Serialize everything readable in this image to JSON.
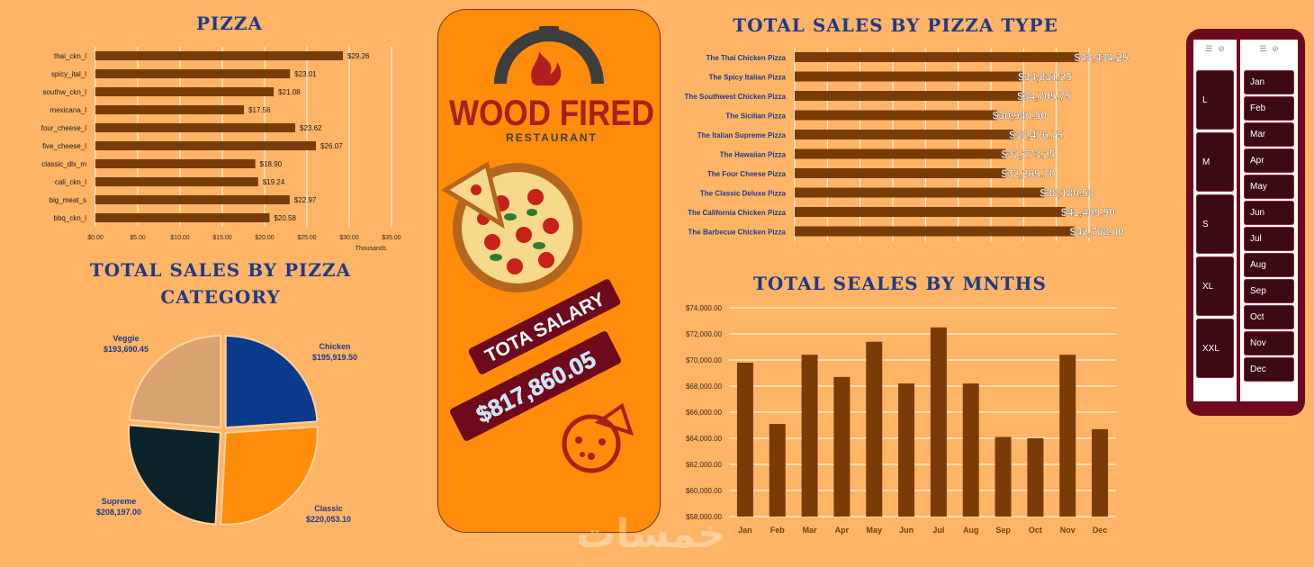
{
  "titles": {
    "pizza": "PIZZA",
    "by_type": "TOTAL SALES BY PIZZA TYPE",
    "by_category_line1": "TOTAL SALES BY PIZZA",
    "by_category_line2": "CATEGORY",
    "by_month": "TOTAL SEALES BY MNTHS"
  },
  "poster": {
    "brand": "WOOD FIRED",
    "sub": "RESTAURANT",
    "salary_label": "TOTA SALARY",
    "salary_value": "$817,860.05"
  },
  "colors": {
    "background": "#ffb466",
    "bar": "#7a3c06",
    "title": "#1f3a8a",
    "poster": "#ff8c0a",
    "slicer": "#6e0a1c",
    "slicer_button": "#3b0a12"
  },
  "slicers": {
    "size": {
      "items": [
        "L",
        "M",
        "S",
        "XL",
        "XXL"
      ]
    },
    "month": {
      "items": [
        "Jan",
        "Feb",
        "Mar",
        "Apr",
        "May",
        "Jun",
        "Jul",
        "Aug",
        "Sep",
        "Oct",
        "Nov",
        "Dec"
      ]
    }
  },
  "watermark": "خمسات",
  "chart_data": [
    {
      "type": "bar",
      "orientation": "horizontal",
      "title": "PIZZA",
      "categories": [
        "thai_ckn_l",
        "spicy_ital_l",
        "southw_ckn_l",
        "mexicana_l",
        "four_cheese_l",
        "five_cheese_l",
        "classic_dlx_m",
        "cali_ckn_l",
        "big_meat_s",
        "bbq_ckn_l"
      ],
      "values": [
        29.26,
        23.01,
        21.08,
        17.56,
        23.62,
        26.07,
        18.9,
        19.24,
        22.97,
        20.58
      ],
      "value_labels": [
        "$29.26",
        "$23.01",
        "$21.08",
        "$17.56",
        "$23.62",
        "$26.07",
        "$18.90",
        "$19.24",
        "$22.97",
        "$20.58"
      ],
      "xticks": [
        "$0.00",
        "$5.00",
        "$10.00",
        "$15.00",
        "$20.00",
        "$25.00",
        "$30.00",
        "$35.00"
      ],
      "xlim": [
        0,
        35
      ],
      "xunit": "Thousands",
      "grid": true
    },
    {
      "type": "bar",
      "orientation": "horizontal",
      "title": "TOTAL SALES BY PIZZA TYPE",
      "categories": [
        "The Thai Chicken Pizza",
        "The Spicy Italian Pizza",
        "The Southwest Chicken Pizza",
        "The Sicilian Pizza",
        "The Italian Supreme Pizza",
        "The Hawaiian Pizza",
        "The Four Cheese Pizza",
        "The Classic Deluxe Pizza",
        "The California Chicken Pizza",
        "The Barbecue Chicken Pizza"
      ],
      "values": [
        43434.25,
        34831.25,
        34705.75,
        30940.5,
        33476.75,
        32273.25,
        32265.7,
        38180.5,
        41409.5,
        42768.0
      ],
      "value_labels": [
        "$43,434.25",
        "$34,831.25",
        "$34,705.75",
        "$30,940.50",
        "$33,476.75",
        "$32,273.25",
        "$32,265.70",
        "$38,180.50",
        "$41,409.50",
        "$42,768.00"
      ],
      "xlim": [
        0,
        45000
      ],
      "grid": true
    },
    {
      "type": "pie",
      "title": "TOTAL SALES BY PIZZA CATEGORY",
      "labels": [
        "Chicken",
        "Classic",
        "Supreme",
        "Veggie"
      ],
      "values": [
        195919.5,
        220053.1,
        208197.0,
        193690.45
      ],
      "value_labels": [
        "$195,919.50",
        "$220,053.10",
        "$208,197.00",
        "$193,690.45"
      ],
      "colors": [
        "#0a3a8c",
        "#ff8c0a",
        "#0c2329",
        "#d9a36f"
      ]
    },
    {
      "type": "bar",
      "title": "TOTAL SEALES BY MNTHS",
      "categories": [
        "Jan",
        "Feb",
        "Mar",
        "Apr",
        "May",
        "Jun",
        "Jul",
        "Aug",
        "Sep",
        "Oct",
        "Nov",
        "Dec"
      ],
      "values": [
        69800,
        65100,
        70400,
        68700,
        71400,
        68200,
        72500,
        68200,
        64100,
        64000,
        70400,
        64700
      ],
      "yticks": [
        "$58,000.00",
        "$60,000.00",
        "$62,000.00",
        "$64,000.00",
        "$66,000.00",
        "$68,000.00",
        "$70,000.00",
        "$72,000.00",
        "$74,000.00"
      ],
      "ylim": [
        58000,
        74000
      ],
      "grid": true
    }
  ]
}
